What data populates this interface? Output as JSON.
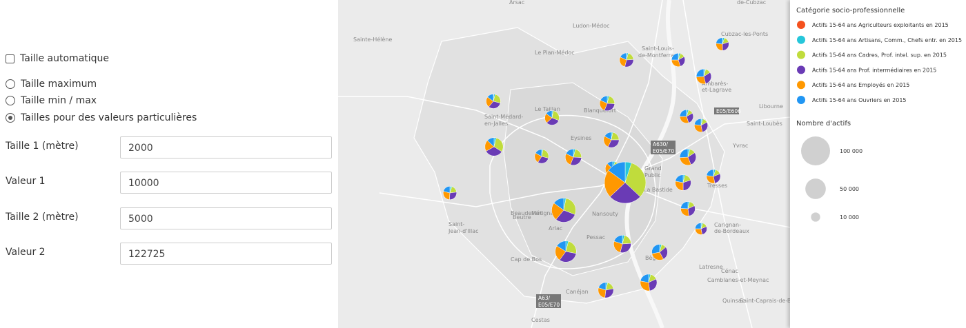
{
  "form": {
    "auto_size": "Taille automatique",
    "auto_checked": false,
    "options": [
      "Taille maximum",
      "Taille min / max",
      "Tailles pour des valeurs particulières"
    ],
    "selected": 2,
    "fields": [
      {
        "label": "Taille 1 (mètre)",
        "value": 2000
      },
      {
        "label": "Valeur 1",
        "value": 10000
      },
      {
        "label": "Taille 2 (mètre)",
        "value": 5000
      },
      {
        "label": "Valeur 2",
        "value": 122725
      }
    ]
  },
  "legend": {
    "title": "Catégorie socio-professionnelle",
    "categories": [
      {
        "name": "Actifs 15-64 ans Agriculteurs exploitants en 2015",
        "color": "#f4511e"
      },
      {
        "name": "Actifs 15-64 ans Artisans, Comm., Chefs entr. en 2015",
        "color": "#26c6da"
      },
      {
        "name": "Actifs 15-64 ans Cadres, Prof. intel. sup. en 2015",
        "color": "#c0dc3c"
      },
      {
        "name": "Actifs 15-64 ans Prof. intermédiaires en 2015",
        "color": "#6a3bb5"
      },
      {
        "name": "Actifs 15-64 ans Employés en 2015",
        "color": "#ff9800"
      },
      {
        "name": "Actifs 15-64 ans Ouvriers en 2015",
        "color": "#2196f3"
      }
    ],
    "size_title": "Nombre d'actifs",
    "sizes": [
      {
        "value": 100000,
        "label": "100 000"
      },
      {
        "value": 50000,
        "label": "50 000"
      },
      {
        "value": 10000,
        "label": "10 000"
      }
    ]
  },
  "map": {
    "places": [
      "Arsac",
      "Ludon-Médoc",
      "Le Pian-Médoc",
      "Sainte-Hélène",
      "Saint-Louis-",
      "de-Montferrand",
      "Blanquefort",
      "Le Taillan",
      "Saint-Médard-",
      "en-Jalles",
      "Eysines",
      "Saint-",
      "Jean-d'Illac",
      "Beaudesert",
      "Mérignac",
      "Beutre",
      "Arlac",
      "Pessac",
      "Cap de Bos",
      "Nansouty",
      "Grand",
      "Public",
      "La Bastide",
      "Bègles",
      "Tresses",
      "Yvrac",
      "Saint-Loubès",
      "Libourne",
      "Latresne",
      "Cénac",
      "Camblanes-et-Meynac",
      "Quinsac",
      "Saint-Caprais-de-Bordeaux",
      "Canéjan",
      "Cestas",
      "Carignan-",
      "de-Bordeaux",
      "Cubzac-les-Ponts",
      "Ambarès-",
      "et-Lagrave",
      "de-Cubzac",
      "E05/E606",
      "A630/",
      "E05/E70",
      "A63/",
      "E05/E70"
    ],
    "pies": [
      {
        "actifs": 14000,
        "shares": [
          1,
          3,
          20,
          30,
          28,
          18
        ]
      },
      {
        "actifs": 13000,
        "shares": [
          1,
          4,
          12,
          28,
          30,
          25
        ]
      },
      {
        "actifs": 12000,
        "shares": [
          1,
          4,
          15,
          30,
          27,
          23
        ]
      },
      {
        "actifs": 16000,
        "shares": [
          1,
          3,
          12,
          30,
          28,
          26
        ]
      },
      {
        "actifs": 15000,
        "shares": [
          1,
          3,
          25,
          32,
          24,
          15
        ]
      },
      {
        "actifs": 16000,
        "shares": [
          0,
          4,
          22,
          30,
          26,
          18
        ]
      },
      {
        "actifs": 13000,
        "shares": [
          1,
          4,
          12,
          28,
          30,
          25
        ]
      },
      {
        "actifs": 13000,
        "shares": [
          1,
          4,
          12,
          30,
          30,
          23
        ]
      },
      {
        "actifs": 15000,
        "shares": [
          0,
          3,
          28,
          32,
          22,
          15
        ]
      },
      {
        "actifs": 24000,
        "shares": [
          0,
          4,
          30,
          33,
          20,
          13
        ]
      },
      {
        "actifs": 17000,
        "shares": [
          0,
          3,
          22,
          32,
          26,
          17
        ]
      },
      {
        "actifs": 14000,
        "shares": [
          0,
          3,
          26,
          30,
          24,
          17
        ]
      },
      {
        "actifs": 19000,
        "shares": [
          0,
          4,
          22,
          30,
          26,
          18
        ]
      },
      {
        "actifs": 19000,
        "shares": [
          0,
          4,
          12,
          28,
          30,
          26
        ]
      },
      {
        "actifs": 16000,
        "shares": [
          0,
          5,
          30,
          30,
          22,
          13
        ]
      },
      {
        "actifs": 122725,
        "shares": [
          0,
          5,
          32,
          26,
          22,
          15
        ]
      },
      {
        "actifs": 14000,
        "shares": [
          1,
          4,
          14,
          28,
          30,
          23
        ]
      },
      {
        "actifs": 18000,
        "shares": [
          0,
          4,
          16,
          30,
          28,
          22
        ]
      },
      {
        "actifs": 13000,
        "shares": [
          1,
          4,
          18,
          28,
          28,
          21
        ]
      },
      {
        "actifs": 42000,
        "shares": [
          0,
          3,
          28,
          30,
          24,
          15
        ]
      },
      {
        "actifs": 15000,
        "shares": [
          0,
          4,
          14,
          30,
          28,
          24
        ]
      },
      {
        "actifs": 10000,
        "shares": [
          1,
          4,
          14,
          28,
          28,
          25
        ]
      },
      {
        "actifs": 32000,
        "shares": [
          0,
          4,
          24,
          32,
          24,
          16
        ]
      },
      {
        "actifs": 22000,
        "shares": [
          0,
          4,
          20,
          30,
          26,
          20
        ]
      },
      {
        "actifs": 18000,
        "shares": [
          0,
          4,
          10,
          28,
          30,
          28
        ]
      },
      {
        "actifs": 17000,
        "shares": [
          0,
          4,
          18,
          30,
          28,
          20
        ]
      },
      {
        "actifs": 20000,
        "shares": [
          0,
          4,
          14,
          30,
          30,
          22
        ]
      }
    ]
  }
}
